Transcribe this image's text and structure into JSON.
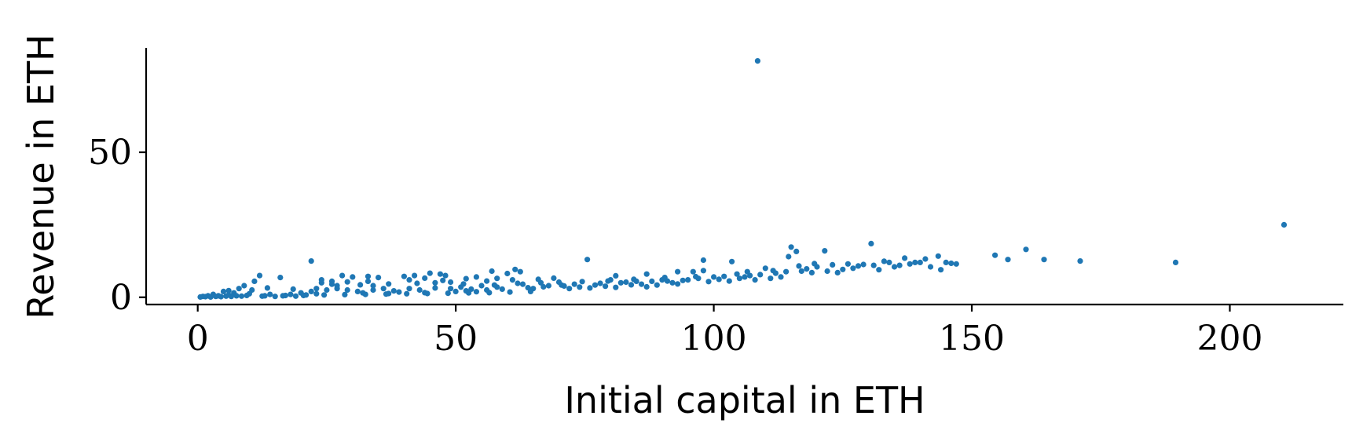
{
  "chart_data": {
    "type": "scatter",
    "title": "",
    "xlabel": "Initial capital in ETH",
    "ylabel": "Revenue in ETH",
    "xlim": [
      -10,
      222
    ],
    "ylim": [
      -2.5,
      86
    ],
    "xticks": [
      0,
      50,
      100,
      150,
      200
    ],
    "yticks": [
      0,
      50
    ],
    "xtick_labels": [
      "0",
      "50",
      "100",
      "150",
      "200"
    ],
    "ytick_labels": [
      "0",
      "50"
    ],
    "grid": false,
    "legend": "none",
    "color": "#1f77b4",
    "series": [
      {
        "points": [
          [
            108.5,
            81.5
          ],
          [
            210.5,
            25
          ],
          [
            130.5,
            18.5
          ],
          [
            115,
            17.3
          ],
          [
            160.5,
            16.5
          ],
          [
            121.5,
            16
          ],
          [
            116,
            15.8
          ],
          [
            154.5,
            14.5
          ],
          [
            114.5,
            14
          ],
          [
            143.5,
            14.2
          ],
          [
            137,
            13.5
          ],
          [
            147,
            11.5
          ],
          [
            157,
            13
          ],
          [
            164,
            13
          ],
          [
            171,
            12.5
          ],
          [
            189.5,
            12
          ],
          [
            134,
            12
          ],
          [
            141,
            13.2
          ],
          [
            22,
            12.5
          ],
          [
            75.5,
            13
          ],
          [
            98,
            12.8
          ],
          [
            103.5,
            12.3
          ],
          [
            126,
            11.5
          ],
          [
            129,
            11.3
          ],
          [
            131,
            11
          ],
          [
            139,
            12
          ],
          [
            120,
            10.5
          ],
          [
            118,
            9.8
          ],
          [
            110,
            10
          ],
          [
            96,
            8.8
          ],
          [
            104.5,
            8
          ],
          [
            106,
            7
          ],
          [
            112,
            8.3
          ],
          [
            100,
            7
          ],
          [
            90,
            6
          ],
          [
            85,
            5.5
          ],
          [
            80,
            6
          ],
          [
            70,
            5.2
          ],
          [
            66,
            6.2
          ],
          [
            60,
            8.2
          ],
          [
            61.5,
            9.6
          ],
          [
            62.5,
            8.8
          ],
          [
            57,
            9
          ],
          [
            48,
            7.5
          ],
          [
            47,
            8
          ],
          [
            45,
            8.3
          ],
          [
            42,
            7.5
          ],
          [
            40,
            7.2
          ],
          [
            35,
            6.8
          ],
          [
            33,
            7.2
          ],
          [
            30,
            7
          ],
          [
            28,
            7.5
          ],
          [
            26,
            5.5
          ],
          [
            24,
            5
          ],
          [
            12,
            7.5
          ],
          [
            16,
            6.8
          ],
          [
            11,
            5.5
          ],
          [
            9,
            4
          ],
          [
            8,
            3
          ],
          [
            5,
            2
          ],
          [
            3,
            1
          ],
          [
            1,
            0.3
          ],
          [
            2,
            0.5
          ],
          [
            4,
            0.5
          ],
          [
            6,
            0.8
          ],
          [
            7,
            1.5
          ],
          [
            10,
            1.2
          ],
          [
            14,
            1
          ],
          [
            18,
            1
          ],
          [
            20,
            1.5
          ],
          [
            22,
            2
          ],
          [
            25,
            2.5
          ],
          [
            27,
            3
          ],
          [
            29,
            2.5
          ],
          [
            31,
            2
          ],
          [
            34,
            2.5
          ],
          [
            36,
            3
          ],
          [
            38,
            2.2
          ],
          [
            41,
            3
          ],
          [
            43,
            2.5
          ],
          [
            46,
            3.2
          ],
          [
            49,
            3
          ],
          [
            51,
            3.5
          ],
          [
            53,
            2.8
          ],
          [
            55,
            4
          ],
          [
            58,
            3.5
          ],
          [
            63,
            4.5
          ],
          [
            65,
            3
          ],
          [
            68,
            4
          ],
          [
            72,
            3
          ],
          [
            74,
            3.5
          ],
          [
            77,
            4.2
          ],
          [
            79,
            3.8
          ],
          [
            82,
            5
          ],
          [
            84,
            4.3
          ],
          [
            86,
            4.5
          ],
          [
            88,
            5.5
          ],
          [
            92,
            5
          ],
          [
            94,
            5.8
          ],
          [
            97,
            6.5
          ],
          [
            101,
            6.2
          ],
          [
            107,
            7.5
          ],
          [
            109,
            7.8
          ],
          [
            111,
            6.5
          ],
          [
            113,
            7
          ],
          [
            117,
            9
          ],
          [
            119,
            8.5
          ],
          [
            122,
            9
          ],
          [
            124,
            8.5
          ],
          [
            127,
            10
          ],
          [
            132,
            9.5
          ],
          [
            135,
            10.5
          ],
          [
            136,
            11
          ],
          [
            138,
            11.5
          ],
          [
            140,
            12
          ],
          [
            142,
            10.5
          ],
          [
            144,
            9.5
          ],
          [
            145,
            12
          ],
          [
            146,
            11.7
          ],
          [
            13,
            0.5
          ],
          [
            15,
            0.3
          ],
          [
            17,
            0.6
          ],
          [
            19,
            0.4
          ],
          [
            21,
            0.8
          ],
          [
            23,
            1.2
          ],
          [
            32,
            1.5
          ],
          [
            37,
            1.3
          ],
          [
            39,
            1.8
          ],
          [
            44,
            1.6
          ],
          [
            50,
            2
          ],
          [
            52,
            2.2
          ],
          [
            54,
            1.9
          ],
          [
            56,
            2.5
          ],
          [
            59,
            2.8
          ],
          [
            64,
            3.3
          ],
          [
            67,
            3.6
          ],
          [
            71,
            3.9
          ],
          [
            73,
            4.5
          ],
          [
            76,
            3.2
          ],
          [
            78,
            4.8
          ],
          [
            81,
            3.4
          ],
          [
            83,
            5.2
          ],
          [
            87,
            3.6
          ],
          [
            89,
            4.2
          ],
          [
            91,
            5.6
          ],
          [
            93,
            4.6
          ],
          [
            95,
            6
          ],
          [
            99,
            5.4
          ],
          [
            102,
            7.2
          ],
          [
            105,
            6.5
          ],
          [
            33,
            5.5
          ],
          [
            41,
            6
          ],
          [
            44,
            6.6
          ],
          [
            52,
            6.4
          ],
          [
            54,
            7
          ],
          [
            58,
            6.5
          ],
          [
            23,
            3
          ],
          [
            27,
            4
          ],
          [
            24,
            6
          ],
          [
            29,
            5.3
          ],
          [
            26,
            4.5
          ],
          [
            34,
            4
          ],
          [
            37,
            4.6
          ],
          [
            46,
            5
          ],
          [
            49,
            5.2
          ],
          [
            56,
            5.6
          ],
          [
            61,
            6
          ],
          [
            69,
            6.6
          ],
          [
            81,
            7.4
          ],
          [
            87,
            8
          ],
          [
            93,
            8.8
          ],
          [
            98,
            9.2
          ],
          [
            0.5,
            0.1
          ],
          [
            1.5,
            0.2
          ],
          [
            2.5,
            0.1
          ],
          [
            3.5,
            0.3
          ],
          [
            4.5,
            0.2
          ],
          [
            5.5,
            0.4
          ],
          [
            6.5,
            0.3
          ],
          [
            7.5,
            0.5
          ],
          [
            8.5,
            0.4
          ],
          [
            9.5,
            0.6
          ],
          [
            12.5,
            0.4
          ],
          [
            16.5,
            0.5
          ],
          [
            20.5,
            0.6
          ],
          [
            24.5,
            0.8
          ],
          [
            28.5,
            0.9
          ],
          [
            32.5,
            1
          ],
          [
            36.5,
            1.1
          ],
          [
            40.5,
            1.2
          ],
          [
            44.5,
            1.3
          ],
          [
            48.5,
            1.4
          ],
          [
            52.5,
            1.5
          ],
          [
            56.5,
            1.6
          ],
          [
            60.5,
            1.8
          ],
          [
            64.5,
            2
          ],
          [
            10.5,
            2.5
          ],
          [
            13.5,
            3.2
          ],
          [
            6,
            2.3
          ],
          [
            18.5,
            2.8
          ],
          [
            31.5,
            4.3
          ],
          [
            42.5,
            4.8
          ],
          [
            47.5,
            5.8
          ],
          [
            51.5,
            4.6
          ],
          [
            57.5,
            4.2
          ],
          [
            62,
            4.8
          ],
          [
            66.5,
            5
          ],
          [
            70.5,
            4.2
          ],
          [
            74.5,
            5.4
          ],
          [
            79.5,
            5.6
          ],
          [
            84.5,
            6.2
          ],
          [
            90.5,
            6.8
          ],
          [
            96.5,
            7.1
          ],
          [
            103,
            5.6
          ],
          [
            108,
            6
          ],
          [
            114,
            8.8
          ],
          [
            123,
            11.2
          ],
          [
            125,
            9.6
          ],
          [
            128,
            10.8
          ],
          [
            133,
            12.4
          ],
          [
            116.5,
            10.8
          ],
          [
            119.5,
            11.6
          ],
          [
            111.5,
            9.2
          ],
          [
            106.5,
            8.8
          ]
        ]
      }
    ]
  }
}
